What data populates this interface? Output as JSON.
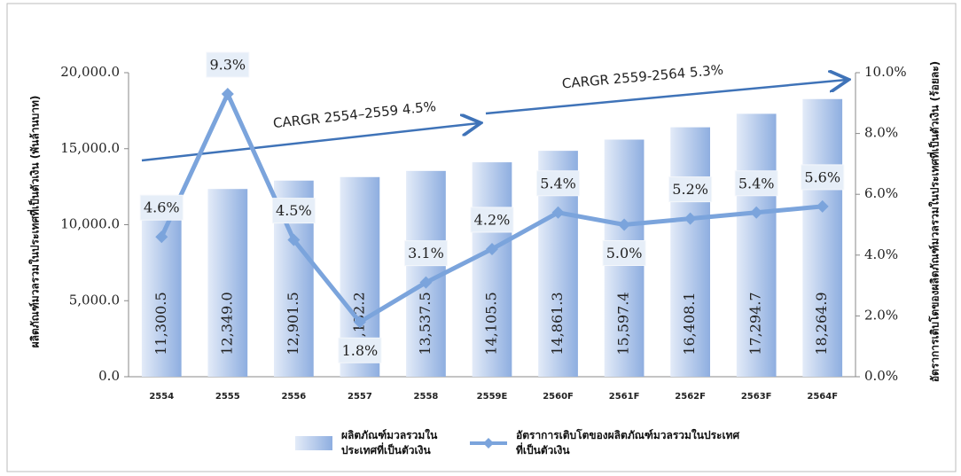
{
  "chart_data": {
    "type": "bar",
    "y_label": "ผลิตภัณฑ์มวลรวมในประเทศที่เป็นตัวเงิน (พันล้านบาท)",
    "y2_label": "อัตราการเติบโตของผลิตภัณฑ์มวลรวมในประเทศที่เป็นตัวเงิน (ร้อยละ)",
    "annotations": [
      "CARGR 2554–2559 4.5%",
      "CARGR 2559-2564 5.3%"
    ],
    "categories": [
      "2554",
      "2555",
      "2556",
      "2557",
      "2558",
      "2559E",
      "2560F",
      "2561F",
      "2562F",
      "2563F",
      "2564F"
    ],
    "series": [
      {
        "name": "ผลิตภัณฑ์มวลรวมในประเทศที่เป็นตัวเงิน",
        "type": "bar",
        "color": "#8eaee0",
        "values": [
          11300.5,
          12349.0,
          12901.5,
          13132.2,
          13537.5,
          14105.5,
          14861.3,
          15597.4,
          16408.1,
          17294.7,
          18264.9
        ],
        "value_labels": [
          "11,300.5",
          "12,349.0",
          "12,901.5",
          "13,132.2",
          "13,537.5",
          "14,105.5",
          "14,861.3",
          "15,597.4",
          "16,408.1",
          "17,294.7",
          "18,264.9"
        ]
      },
      {
        "name": "อัตราการเติบโตของผลิตภัณฑ์มวลรวมในประเทศที่เป็นตัวเงิน",
        "type": "line",
        "axis": "y2",
        "color": "#7ba4dc",
        "values": [
          4.6,
          9.3,
          4.5,
          1.8,
          3.1,
          4.2,
          5.4,
          5.0,
          5.2,
          5.4,
          5.6
        ],
        "value_labels": [
          "4.6%",
          "9.3%",
          "4.5%",
          "1.8%",
          "3.1%",
          "4.2%",
          "5.4%",
          "5.0%",
          "5.2%",
          "5.4%",
          "5.6%"
        ]
      }
    ],
    "ylim": [
      0,
      20000
    ],
    "yticks": [
      {
        "value": 0,
        "label": "0.0"
      },
      {
        "value": 5000,
        "label": "5,000.0"
      },
      {
        "value": 10000,
        "label": "10,000.0"
      },
      {
        "value": 15000,
        "label": "15,000.0"
      },
      {
        "value": 20000,
        "label": "20,000.0"
      }
    ],
    "y2lim": [
      0,
      10
    ],
    "y2ticks": [
      {
        "value": 0,
        "label": "0.0%"
      },
      {
        "value": 2,
        "label": "2.0%"
      },
      {
        "value": 4,
        "label": "4.0%"
      },
      {
        "value": 6,
        "label": "6.0%"
      },
      {
        "value": 8,
        "label": "8.0%"
      },
      {
        "value": 10,
        "label": "10.0%"
      }
    ],
    "grid": false
  }
}
